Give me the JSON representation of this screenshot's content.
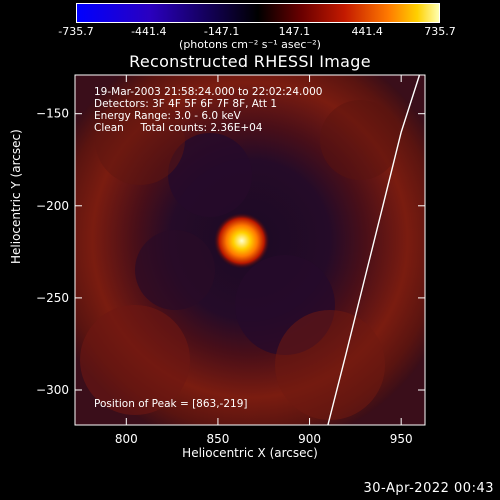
{
  "colorbar": {
    "ticks": [
      "-735.7",
      "-441.4",
      "-147.1",
      "147.1",
      "441.4",
      "735.7"
    ],
    "units": "(photons cm⁻² s⁻¹ asec⁻²)"
  },
  "title": "Reconstructed RHESSI Image",
  "info": {
    "line1": "19-Mar-2003 21:58:24.000 to 22:02:24.000",
    "line2": "Detectors: 3F 4F 5F 6F 7F 8F, Att 1",
    "line3": "Energy Range: 3.0 - 6.0 keV",
    "line4": "Clean     Total counts: 2.36E+04",
    "peak": "Position of Peak = [863,-219]"
  },
  "timestamp": "30-Apr-2022 00:43",
  "chart_data": {
    "type": "heatmap",
    "title": "Reconstructed RHESSI Image",
    "xlabel": "Heliocentric X (arcsec)",
    "ylabel": "Heliocentric Y (arcsec)",
    "xlim": [
      772,
      963
    ],
    "ylim": [
      -319,
      -129
    ],
    "x_ticks": [
      800,
      850,
      900,
      950
    ],
    "y_ticks": [
      -150,
      -200,
      -250,
      -300
    ],
    "x_tick_labels": [
      "800",
      "850",
      "900",
      "950"
    ],
    "y_tick_labels": [
      "−150",
      "−200",
      "−250",
      "−300"
    ],
    "peak": {
      "x": 863,
      "y": -219
    },
    "limb_curve": [
      [
        960,
        -129
      ],
      [
        950,
        -160
      ],
      [
        940,
        -200
      ],
      [
        930,
        -240
      ],
      [
        920,
        -280
      ],
      [
        910,
        -319
      ]
    ],
    "color_scale": {
      "min": -735.7,
      "max": 735.7
    }
  }
}
